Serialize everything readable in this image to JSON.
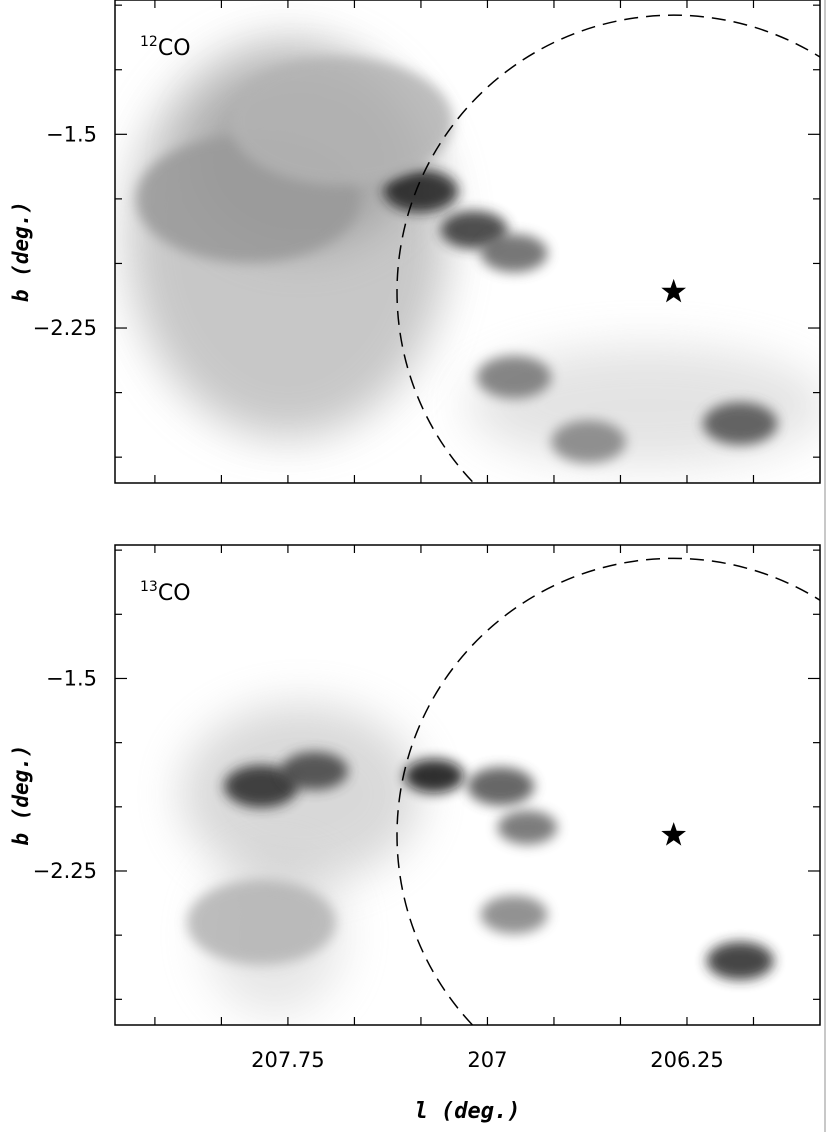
{
  "chart_data": [
    {
      "type": "heatmap",
      "panel_label": "12CO",
      "label_main": "CO",
      "label_sup": "12",
      "xlabel": "",
      "ylabel": "b (deg.)",
      "y_ticks": [
        "-1.5",
        "-2.25"
      ],
      "x_ticks": [],
      "xlim": [
        208.4,
        205.75
      ],
      "ylim": [
        -2.85,
        -0.98
      ],
      "star": {
        "l": 206.3,
        "b": -2.11
      },
      "circle": {
        "l_center": 206.3,
        "b_center": -2.11,
        "radius_deg": 1.04
      },
      "emission": [
        {
          "l": 207.25,
          "b": -1.72,
          "peak": 0.88,
          "width": 0.1
        },
        {
          "l": 207.05,
          "b": -1.87,
          "peak": 0.8,
          "width": 0.09
        },
        {
          "l": 206.9,
          "b": -1.96,
          "peak": 0.62,
          "width": 0.09
        },
        {
          "l": 207.9,
          "b": -1.75,
          "peak": 0.4,
          "width": 0.3
        },
        {
          "l": 207.55,
          "b": -1.45,
          "peak": 0.3,
          "width": 0.3
        },
        {
          "l": 206.9,
          "b": -2.44,
          "peak": 0.55,
          "width": 0.1
        },
        {
          "l": 206.62,
          "b": -2.69,
          "peak": 0.5,
          "width": 0.1
        },
        {
          "l": 206.05,
          "b": -2.62,
          "peak": 0.7,
          "width": 0.1
        }
      ]
    },
    {
      "type": "heatmap",
      "panel_label": "13CO",
      "label_main": "CO",
      "label_sup": "13",
      "xlabel": "l (deg.)",
      "ylabel": "b (deg.)",
      "y_ticks": [
        "-1.5",
        "-2.25"
      ],
      "x_ticks": [
        "207.75",
        "207",
        "206.25"
      ],
      "xlim": [
        208.4,
        205.75
      ],
      "ylim": [
        -2.85,
        -0.98
      ],
      "star": {
        "l": 206.3,
        "b": -2.11
      },
      "circle": {
        "l_center": 206.3,
        "b_center": -2.11,
        "radius_deg": 1.04
      },
      "emission": [
        {
          "l": 207.85,
          "b": -1.92,
          "peak": 0.85,
          "width": 0.1
        },
        {
          "l": 207.65,
          "b": -1.86,
          "peak": 0.75,
          "width": 0.09
        },
        {
          "l": 207.2,
          "b": -1.88,
          "peak": 0.95,
          "width": 0.08
        },
        {
          "l": 206.95,
          "b": -1.92,
          "peak": 0.7,
          "width": 0.09
        },
        {
          "l": 206.85,
          "b": -2.08,
          "peak": 0.6,
          "width": 0.08
        },
        {
          "l": 206.9,
          "b": -2.42,
          "peak": 0.5,
          "width": 0.09
        },
        {
          "l": 206.05,
          "b": -2.6,
          "peak": 0.85,
          "width": 0.09
        },
        {
          "l": 207.85,
          "b": -2.45,
          "peak": 0.3,
          "width": 0.2
        }
      ]
    }
  ]
}
